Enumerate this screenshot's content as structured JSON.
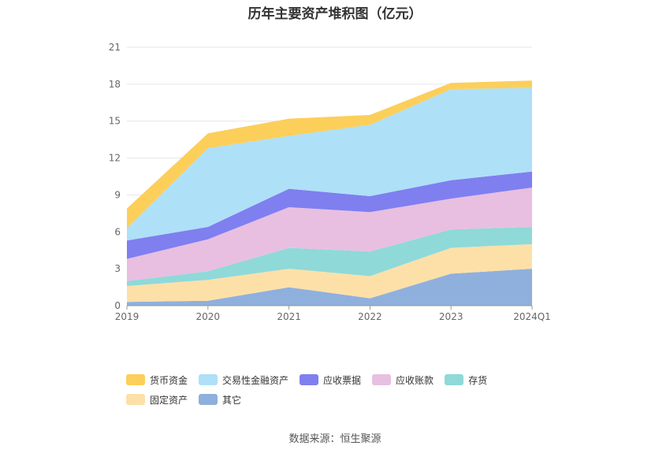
{
  "chart_data": {
    "type": "area",
    "stacked": true,
    "title": "历年主要资产堆积图（亿元）",
    "categories": [
      "2019",
      "2020",
      "2021",
      "2022",
      "2023",
      "2024Q1"
    ],
    "ylim": [
      0,
      21
    ],
    "yticks": [
      0,
      3,
      6,
      9,
      12,
      15,
      18,
      21
    ],
    "grid": true,
    "legend_position": "bottom",
    "series": [
      {
        "name": "其它",
        "color": "#8fb0dd",
        "values": [
          0.3,
          0.4,
          1.5,
          0.6,
          2.6,
          3.0
        ]
      },
      {
        "name": "固定资产",
        "color": "#fde0a8",
        "values": [
          1.3,
          1.7,
          1.5,
          1.8,
          2.1,
          2.0
        ]
      },
      {
        "name": "存货",
        "color": "#8fd9d9",
        "values": [
          0.4,
          0.7,
          1.7,
          2.0,
          1.5,
          1.4
        ]
      },
      {
        "name": "应收账款",
        "color": "#e8bfe0",
        "values": [
          1.8,
          2.6,
          3.3,
          3.2,
          2.5,
          3.2
        ]
      },
      {
        "name": "应收票据",
        "color": "#7f7ff0",
        "values": [
          1.5,
          1.0,
          1.5,
          1.3,
          1.5,
          1.3
        ]
      },
      {
        "name": "交易性金融资产",
        "color": "#aee0f8",
        "values": [
          1.0,
          6.4,
          4.3,
          5.8,
          7.4,
          6.8
        ]
      },
      {
        "name": "货币资金",
        "color": "#fccf5b",
        "values": [
          1.6,
          1.2,
          1.4,
          0.8,
          0.5,
          0.6
        ]
      }
    ],
    "legend_order": [
      "货币资金",
      "交易性金融资产",
      "应收票据",
      "应收账款",
      "存货",
      "固定资产",
      "其它"
    ]
  },
  "footer": {
    "source": "数据来源：恒生聚源"
  }
}
